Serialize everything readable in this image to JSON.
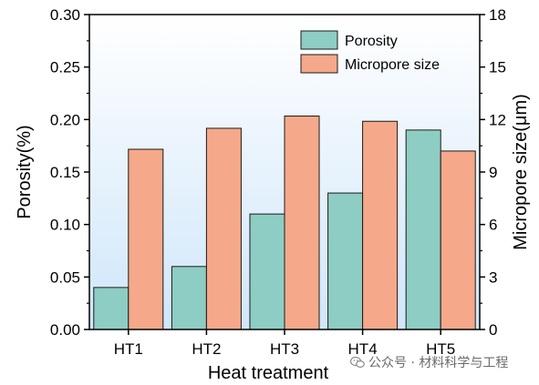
{
  "chart_data": {
    "type": "bar",
    "categories": [
      "HT1",
      "HT2",
      "HT3",
      "HT4",
      "HT5"
    ],
    "series": [
      {
        "name": "Porosity",
        "axis": "left",
        "color": "#8ecdc3",
        "values": [
          0.04,
          0.06,
          0.11,
          0.13,
          0.19
        ]
      },
      {
        "name": "Micropore size",
        "axis": "right",
        "color": "#f5a98a",
        "values": [
          10.3,
          11.5,
          12.2,
          11.9,
          10.2
        ]
      }
    ],
    "xlabel": "Heat treatment",
    "ylabel_left": "Porosity(%)",
    "ylabel_right": "Micropore size(μm)",
    "ylim_left": [
      0,
      0.3
    ],
    "ylim_right": [
      0,
      18
    ],
    "yticks_left": [
      "0.00",
      "0.05",
      "0.10",
      "0.15",
      "0.20",
      "0.25",
      "0.30"
    ],
    "yticks_right": [
      "0",
      "3",
      "6",
      "9",
      "12",
      "15",
      "18"
    ],
    "legend_position": "top-right",
    "background_gradient": [
      "#ffffff",
      "#cfe6fa"
    ],
    "grid": false
  },
  "watermark": {
    "text": "公众号 · 材料科学与工程",
    "icon": "wechat-icon"
  }
}
